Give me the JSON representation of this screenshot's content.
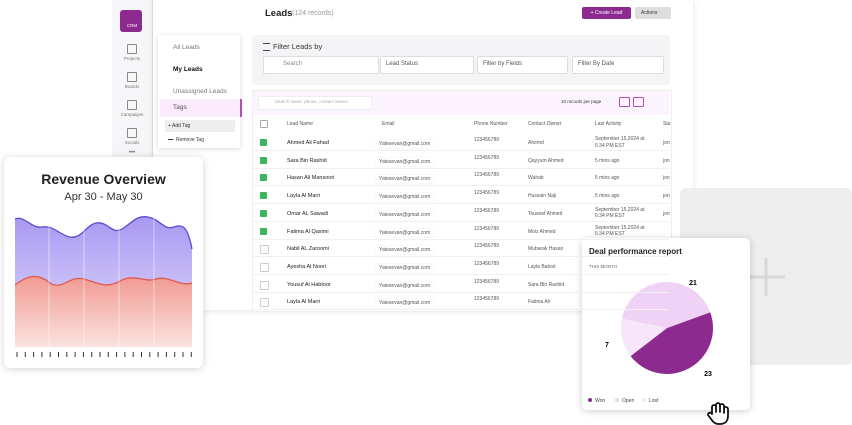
{
  "sidebar": {
    "items": [
      "CRM",
      "Projects",
      "Boards",
      "Campaigns",
      "Socials"
    ],
    "more": "•••"
  },
  "header": {
    "title": "Leads",
    "records": "(124 records)",
    "create": "+ Create Lead",
    "actions": "Actions"
  },
  "menu": {
    "items": [
      "All Leads",
      "My Leads",
      "Unassigned Leads"
    ],
    "tags": "Tags",
    "add_tag": "+ Add Tag",
    "remove_tag": "Remove Tag"
  },
  "filter": {
    "title": "Filter Leads by",
    "search": "Search",
    "fields": [
      "Lead Status",
      "Filter by Fields",
      "Filter By Date"
    ]
  },
  "table": {
    "search": "Search name, phone, contact owner...",
    "per_page": "10 records per page",
    "columns": [
      "Lead Name",
      "Email",
      "Phone Number",
      "Contact Owner",
      "Last Activity",
      "Sta"
    ],
    "checked": [
      true,
      true,
      true,
      true,
      true,
      true,
      false,
      false,
      false,
      false
    ],
    "rows": [
      [
        "Ahmed Ali Fahad",
        "Yatesevan@gmail.com",
        "123456789",
        "Ahemd",
        "September 15,2024 at 6:34 PM EST",
        "jon"
      ],
      [
        "Sara Bin Rashid",
        "Yatesevan@gmail.com",
        "123456789",
        "Qayyum Ahmed",
        "5 mins ago",
        "jon"
      ],
      [
        "Hasan Ali Mansoori",
        "Yatesevan@gmail.com",
        "123456789",
        "Wahab",
        "5 mins ago",
        "jon"
      ],
      [
        "Layla Al Marri",
        "Yatesevan@gmail.com",
        "123456789",
        "Hussain Naji",
        "5 mins ago",
        "jon"
      ],
      [
        "Omar AL Sawadi",
        "Yatesevan@gmail.com",
        "123456789",
        "Touseef Ahmed",
        "September 15,2024 at 6:34 PM EST",
        "jon"
      ],
      [
        "Fatima Al Qasimi",
        "Yatesevan@gmail.com",
        "123456789",
        "Moiz Ahmed",
        "September 15,2024 at 6:34 PM EST",
        null
      ],
      [
        "Nabil AL Zaroomi",
        "Yatesevan@gmail.com",
        "123456789",
        "Mubarak Hasan",
        null,
        null
      ],
      [
        "Ayesha Al Noori",
        "Yatesevan@gmail.com",
        "123456789",
        "Layla Batool",
        null,
        null
      ],
      [
        "Yousuf Al Habtoor",
        "Yatesevan@gmail.com",
        "123456789",
        "Sara Bin Rashid",
        null,
        null
      ],
      [
        "Layla Al Marri",
        "Yatesevan@gmail.com",
        "123456789",
        "Fatima Ali",
        null,
        null
      ]
    ]
  },
  "revenue": {
    "title": "Revenue Overview",
    "range": "Apr 30 - May 30"
  },
  "deal": {
    "title": "Deal performance report",
    "subtitle": "THIS MONTH",
    "segments": [
      {
        "name": "Won",
        "value": 23,
        "color": "#8c2a90"
      },
      {
        "name": "Lost",
        "value": 7,
        "color": "#f7e6fa"
      },
      {
        "name": "Open",
        "value": 21,
        "color": "#efd2f5"
      }
    ]
  }
}
